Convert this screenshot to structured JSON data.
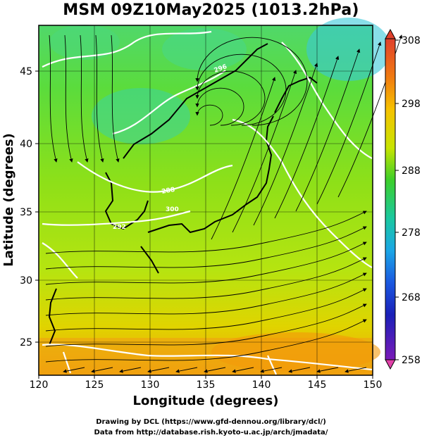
{
  "title": "MSM 09Z10May2025 (1013.2hPa)",
  "map": {
    "xlabel": "Longitude (degrees)",
    "ylabel": "Latitude  (degrees)",
    "lon_ticks": [
      "120",
      "125",
      "130",
      "135",
      "140",
      "145",
      "150"
    ],
    "lat_ticks": [
      "25",
      "30",
      "35",
      "40",
      "45"
    ],
    "isotherm_labels": [
      "288",
      "292",
      "296",
      "300"
    ]
  },
  "colorbar": {
    "ticks": [
      "308",
      "298",
      "288",
      "278",
      "268",
      "258"
    ],
    "colors": [
      "#d44a8a",
      "#e8421f",
      "#f07a10",
      "#f9b400",
      "#e9e000",
      "#8cdc00",
      "#2cc82a",
      "#1dc8a6",
      "#1aa8e0",
      "#1a62e0",
      "#1a2ac0",
      "#6a1ac0"
    ]
  },
  "credits": {
    "line1": "Drawing by DCL (https://www.gfd-dennou.org/library/dcl/)",
    "line2": "Data from http://database.rish.kyoto-u.ac.jp/arch/jmadata/"
  }
}
